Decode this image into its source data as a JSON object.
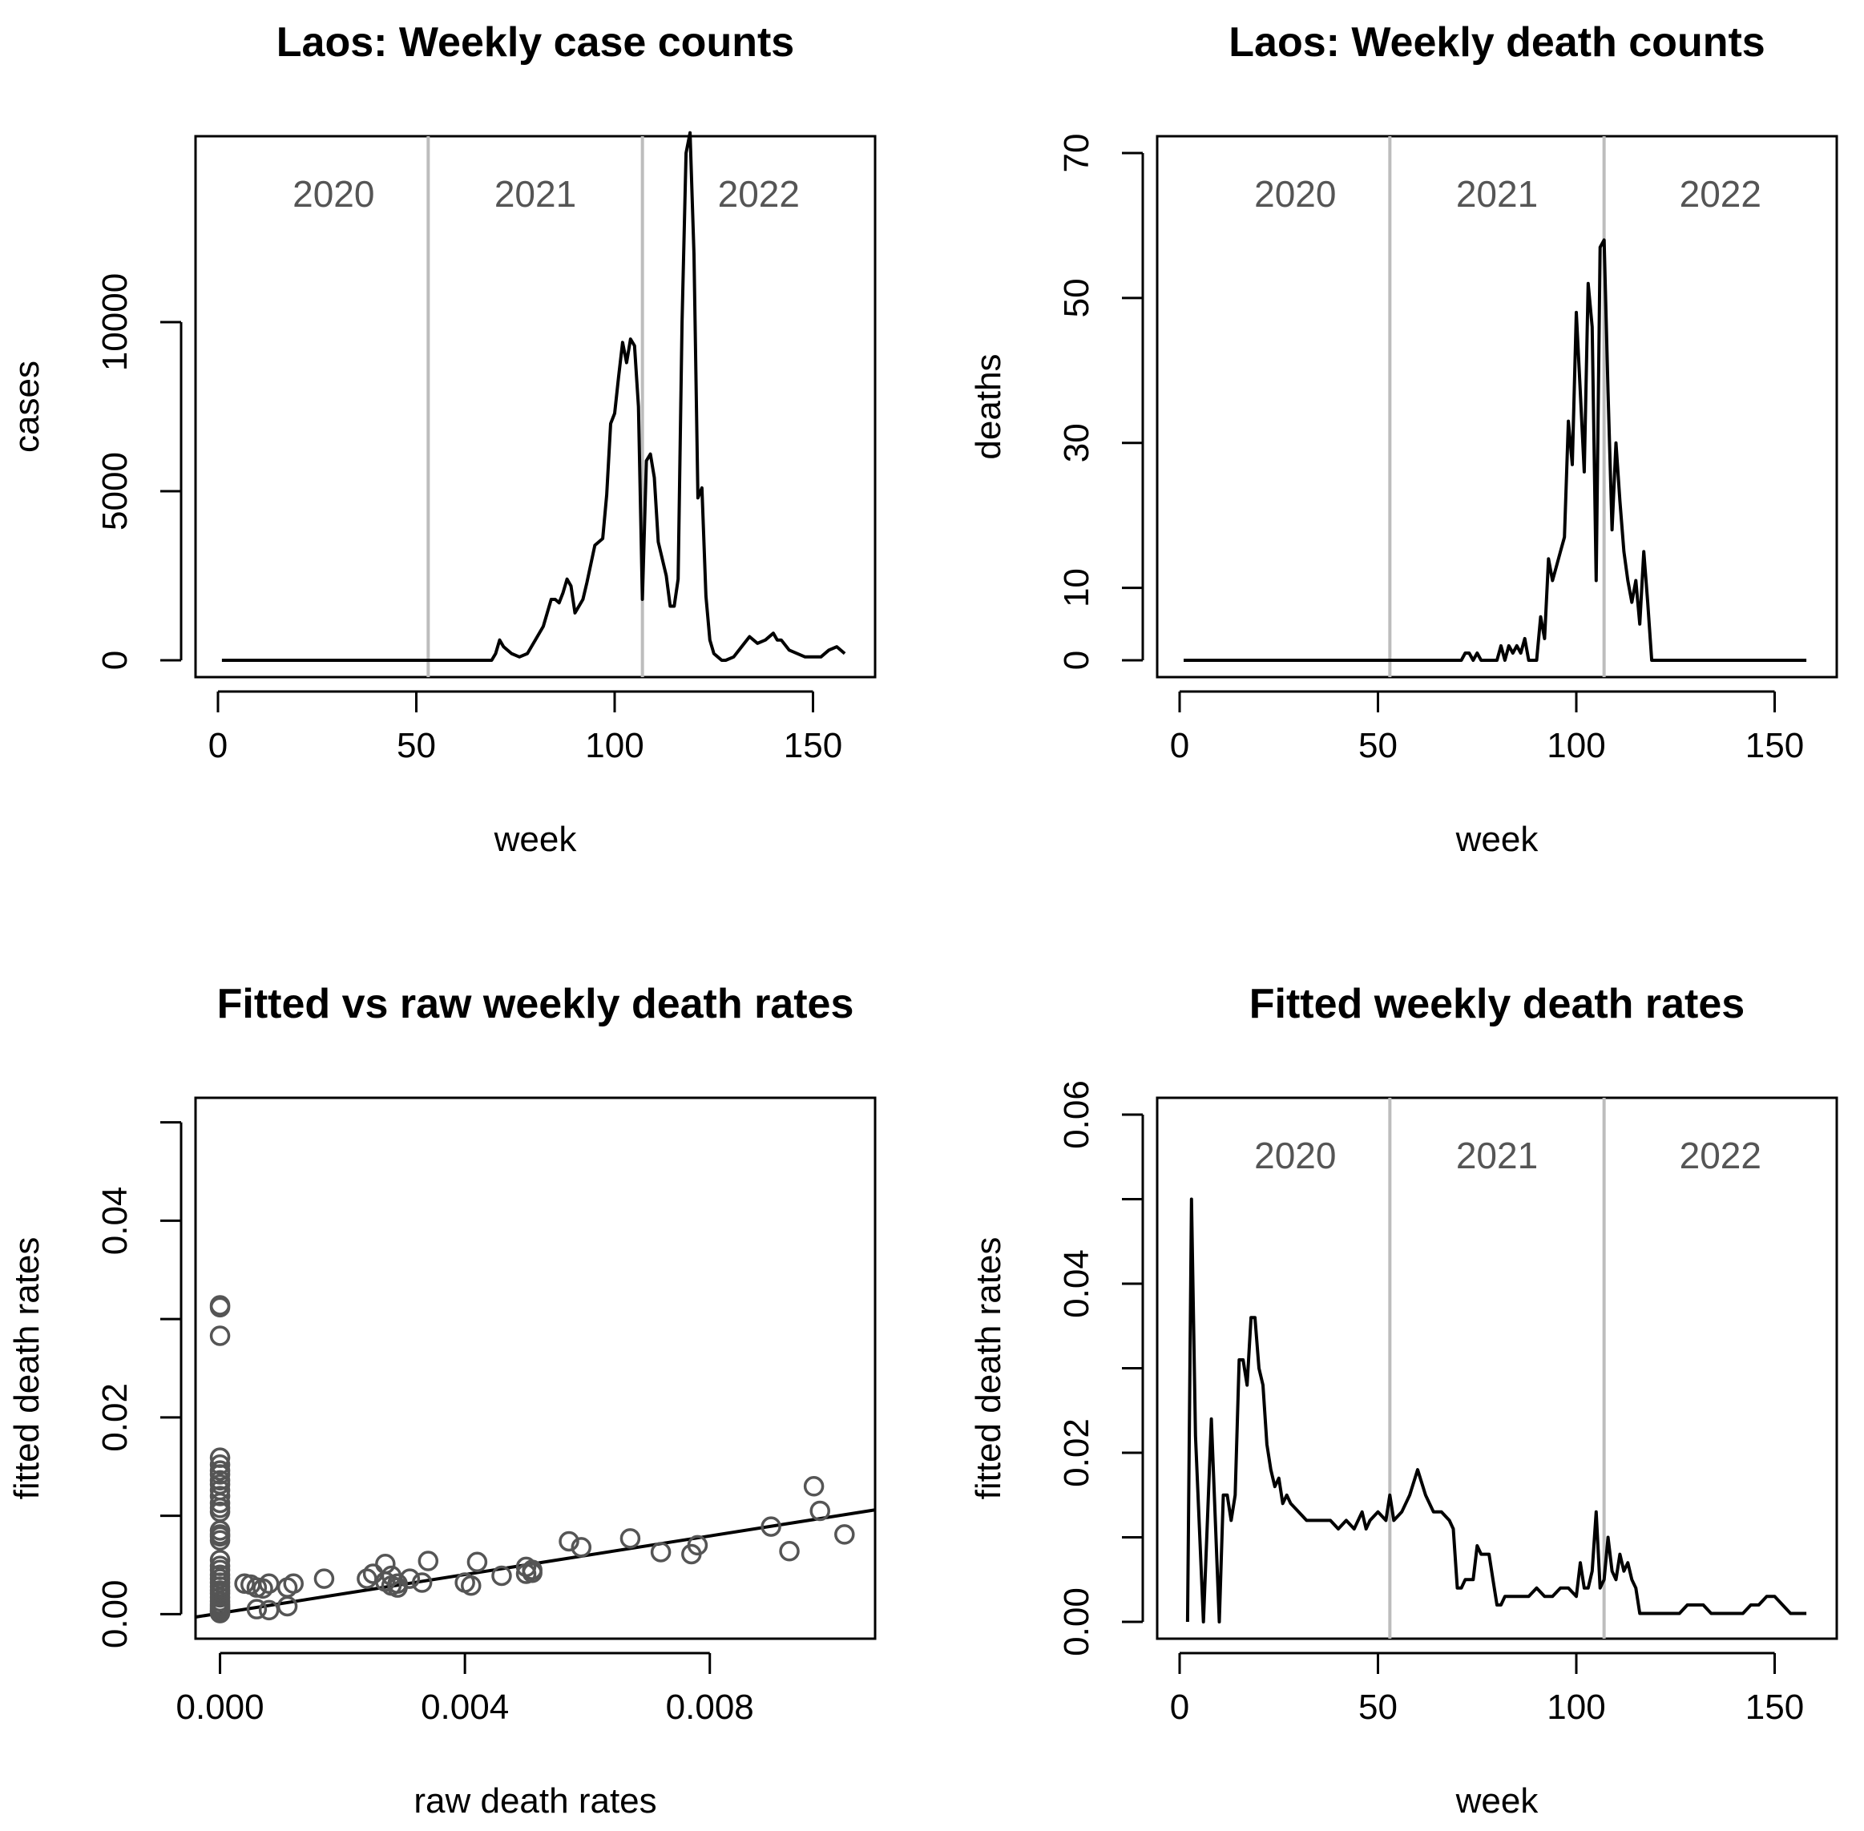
{
  "chart_data": [
    {
      "type": "line",
      "title": "Laos: Weekly case counts",
      "xlabel": "week",
      "ylabel": "cases",
      "xlim": [
        0,
        160
      ],
      "ylim": [
        0,
        15000
      ],
      "xticks": [
        0,
        50,
        100,
        150
      ],
      "yticks": [
        0,
        5000,
        10000
      ],
      "year_labels": [
        "2020",
        "2021",
        "2022"
      ],
      "year_boundaries": [
        53,
        107
      ],
      "series": [
        {
          "x": [
            1,
            10,
            20,
            30,
            40,
            50,
            60,
            69,
            70,
            71,
            72,
            74,
            76,
            78,
            80,
            82,
            84,
            85,
            86,
            87,
            88,
            89,
            90,
            92,
            93,
            95,
            97,
            98,
            99,
            100,
            101,
            102,
            103,
            104,
            105,
            106,
            107,
            108,
            109,
            110,
            111,
            113,
            114,
            115,
            116,
            117,
            118,
            119,
            120,
            121,
            122,
            123,
            124,
            125,
            126,
            127,
            128,
            130,
            132,
            134,
            136,
            138,
            140,
            141,
            142,
            144,
            146,
            148,
            150,
            152,
            154,
            156,
            158
          ],
          "y": [
            0,
            0,
            0,
            0,
            0,
            0,
            0,
            0,
            200,
            600,
            400,
            200,
            100,
            200,
            600,
            1000,
            1800,
            1800,
            1700,
            2000,
            2400,
            2200,
            1400,
            1800,
            2300,
            3400,
            3600,
            4900,
            7000,
            7300,
            8400,
            9400,
            8800,
            9500,
            9300,
            7500,
            1800,
            5900,
            6100,
            5400,
            3500,
            2500,
            1600,
            1600,
            2400,
            10000,
            15000,
            15600,
            12000,
            4800,
            5100,
            1900,
            600,
            200,
            100,
            0,
            0,
            100,
            400,
            700,
            500,
            600,
            800,
            600,
            600,
            300,
            200,
            100,
            100,
            100,
            300,
            400,
            200
          ]
        }
      ]
    },
    {
      "type": "line",
      "title": "Laos: Weekly death counts",
      "xlabel": "week",
      "ylabel": "deaths",
      "xlim": [
        0,
        160
      ],
      "ylim": [
        0,
        70
      ],
      "xticks": [
        0,
        50,
        100,
        150
      ],
      "yticks": [
        0,
        10,
        30,
        50,
        70
      ],
      "year_labels": [
        "2020",
        "2021",
        "2022"
      ],
      "year_boundaries": [
        53,
        107
      ],
      "series": [
        {
          "x": [
            1,
            20,
            40,
            60,
            71,
            72,
            73,
            74,
            75,
            76,
            80,
            81,
            82,
            83,
            84,
            85,
            86,
            87,
            88,
            89,
            90,
            91,
            92,
            93,
            94,
            95,
            96,
            97,
            98,
            99,
            100,
            101,
            102,
            103,
            104,
            105,
            106,
            107,
            108,
            109,
            110,
            111,
            112,
            113,
            114,
            115,
            116,
            117,
            118,
            119,
            120,
            121,
            130,
            140,
            150,
            158
          ],
          "y": [
            0,
            0,
            0,
            0,
            0,
            1,
            1,
            0,
            1,
            0,
            0,
            2,
            0,
            2,
            1,
            2,
            1,
            3,
            0,
            0,
            0,
            6,
            3,
            14,
            11,
            13,
            15,
            17,
            33,
            27,
            48,
            37,
            26,
            52,
            46,
            11,
            57,
            58,
            37,
            18,
            30,
            22,
            15,
            11,
            8,
            11,
            5,
            15,
            8,
            0,
            0,
            0,
            0,
            0,
            0,
            0
          ]
        }
      ]
    },
    {
      "type": "scatter",
      "title": "Fitted vs raw weekly death rates",
      "xlabel": "raw death rates",
      "ylabel": "fitted death rates",
      "xlim": [
        -0.0004,
        0.0107
      ],
      "ylim": [
        -0.0025,
        0.0525
      ],
      "xticks": [
        0.0,
        0.004,
        0.008
      ],
      "xticklabels": [
        "0.000",
        "0.004",
        "0.008"
      ],
      "yticks": [
        0.0,
        0.01,
        0.02,
        0.03,
        0.04,
        0.05
      ],
      "yticklabels": [
        "0.00",
        "",
        "0.02",
        "",
        "0.04",
        ""
      ],
      "fit_line": {
        "x": [
          -0.0004,
          0.0107
        ],
        "y": [
          -0.0003,
          0.0106
        ]
      },
      "series": [
        {
          "x": [
            0.0,
            0.0,
            0.0,
            0.0,
            0.0,
            0.0,
            0.0,
            0.0,
            0.0,
            0.0,
            0.0,
            0.0,
            0.0,
            0.0,
            0.0,
            0.0,
            0.0,
            0.0,
            0.0,
            0.0,
            0.0,
            0.0,
            0.0,
            0.0,
            0.0,
            0.0,
            0.0,
            0.0,
            0.0,
            0.0,
            0.0,
            0.0,
            0.0,
            0.0,
            0.0,
            0.0,
            0.0004,
            0.0005,
            0.0006,
            0.0006,
            0.0007,
            0.0008,
            0.0008,
            0.0011,
            0.0011,
            0.0012,
            0.0017,
            0.0024,
            0.0025,
            0.0027,
            0.0027,
            0.0028,
            0.0028,
            0.0029,
            0.0029,
            0.0031,
            0.0033,
            0.0034,
            0.004,
            0.0041,
            0.0042,
            0.0046,
            0.005,
            0.005,
            0.0051,
            0.0051,
            0.0057,
            0.0059,
            0.0067,
            0.0072,
            0.0077,
            0.0078,
            0.009,
            0.0093,
            0.0097,
            0.0098,
            0.0102
          ],
          "y": [
            0.0314,
            0.0312,
            0.0283,
            0.0159,
            0.0152,
            0.0146,
            0.0142,
            0.0136,
            0.0132,
            0.0126,
            0.012,
            0.0113,
            0.0108,
            0.0104,
            0.0085,
            0.0081,
            0.0079,
            0.0075,
            0.0055,
            0.0049,
            0.0045,
            0.004,
            0.0036,
            0.0032,
            0.0028,
            0.0024,
            0.0021,
            0.0017,
            0.0013,
            0.001,
            0.0008,
            0.0006,
            0.0004,
            0.0003,
            0.0002,
            0.0001,
            0.0031,
            0.003,
            0.0027,
            0.0005,
            0.0026,
            0.0004,
            0.0031,
            0.0008,
            0.0027,
            0.0031,
            0.0036,
            0.0036,
            0.0041,
            0.0033,
            0.0051,
            0.0039,
            0.0029,
            0.0027,
            0.0031,
            0.0036,
            0.0032,
            0.0054,
            0.0032,
            0.0029,
            0.0053,
            0.0039,
            0.0048,
            0.0041,
            0.0042,
            0.0045,
            0.0074,
            0.0068,
            0.0077,
            0.0063,
            0.0061,
            0.007,
            0.0089,
            0.0064,
            0.013,
            0.0105,
            0.0081
          ]
        }
      ]
    },
    {
      "type": "line",
      "title": "Fitted weekly death rates",
      "xlabel": "week",
      "ylabel": "fitted death rates",
      "xlim": [
        0,
        160
      ],
      "ylim": [
        0,
        0.06
      ],
      "xticks": [
        0,
        50,
        100,
        150
      ],
      "yticks": [
        0.0,
        0.01,
        0.02,
        0.03,
        0.04,
        0.05,
        0.06
      ],
      "yticklabels": [
        "0.00",
        "",
        "0.02",
        "",
        "0.04",
        "",
        "0.06"
      ],
      "year_labels": [
        "2020",
        "2021",
        "2022"
      ],
      "year_boundaries": [
        53,
        107
      ],
      "series": [
        {
          "x": [
            2,
            3,
            4,
            6,
            7,
            8,
            10,
            11,
            12,
            13,
            14,
            15,
            16,
            17,
            18,
            19,
            20,
            21,
            22,
            23,
            24,
            25,
            26,
            27,
            28,
            30,
            32,
            34,
            36,
            38,
            40,
            42,
            44,
            46,
            47,
            48,
            50,
            52,
            53,
            54,
            56,
            58,
            60,
            62,
            64,
            66,
            68,
            69,
            70,
            71,
            72,
            73,
            74,
            75,
            76,
            78,
            79,
            80,
            81,
            82,
            84,
            86,
            88,
            90,
            92,
            94,
            96,
            98,
            100,
            101,
            102,
            103,
            104,
            105,
            106,
            107,
            108,
            109,
            110,
            111,
            112,
            113,
            114,
            115,
            116,
            117,
            118,
            120,
            122,
            124,
            126,
            128,
            130,
            132,
            134,
            136,
            138,
            140,
            142,
            144,
            146,
            148,
            150,
            152,
            154,
            156,
            158
          ],
          "y": [
            0.0,
            0.05,
            0.022,
            0.0,
            0.012,
            0.024,
            0.0,
            0.015,
            0.015,
            0.012,
            0.015,
            0.031,
            0.031,
            0.028,
            0.036,
            0.036,
            0.03,
            0.028,
            0.021,
            0.018,
            0.016,
            0.017,
            0.014,
            0.015,
            0.014,
            0.013,
            0.012,
            0.012,
            0.012,
            0.012,
            0.011,
            0.012,
            0.011,
            0.013,
            0.011,
            0.012,
            0.013,
            0.012,
            0.015,
            0.012,
            0.013,
            0.015,
            0.018,
            0.015,
            0.013,
            0.013,
            0.012,
            0.011,
            0.004,
            0.004,
            0.005,
            0.005,
            0.005,
            0.009,
            0.008,
            0.008,
            0.005,
            0.002,
            0.002,
            0.003,
            0.003,
            0.003,
            0.003,
            0.004,
            0.003,
            0.003,
            0.004,
            0.004,
            0.003,
            0.007,
            0.004,
            0.004,
            0.006,
            0.013,
            0.004,
            0.005,
            0.01,
            0.006,
            0.005,
            0.008,
            0.006,
            0.007,
            0.005,
            0.004,
            0.001,
            0.001,
            0.001,
            0.001,
            0.001,
            0.001,
            0.001,
            0.002,
            0.002,
            0.002,
            0.001,
            0.001,
            0.001,
            0.001,
            0.001,
            0.002,
            0.002,
            0.003,
            0.003,
            0.002,
            0.001,
            0.001,
            0.001
          ]
        }
      ]
    }
  ]
}
